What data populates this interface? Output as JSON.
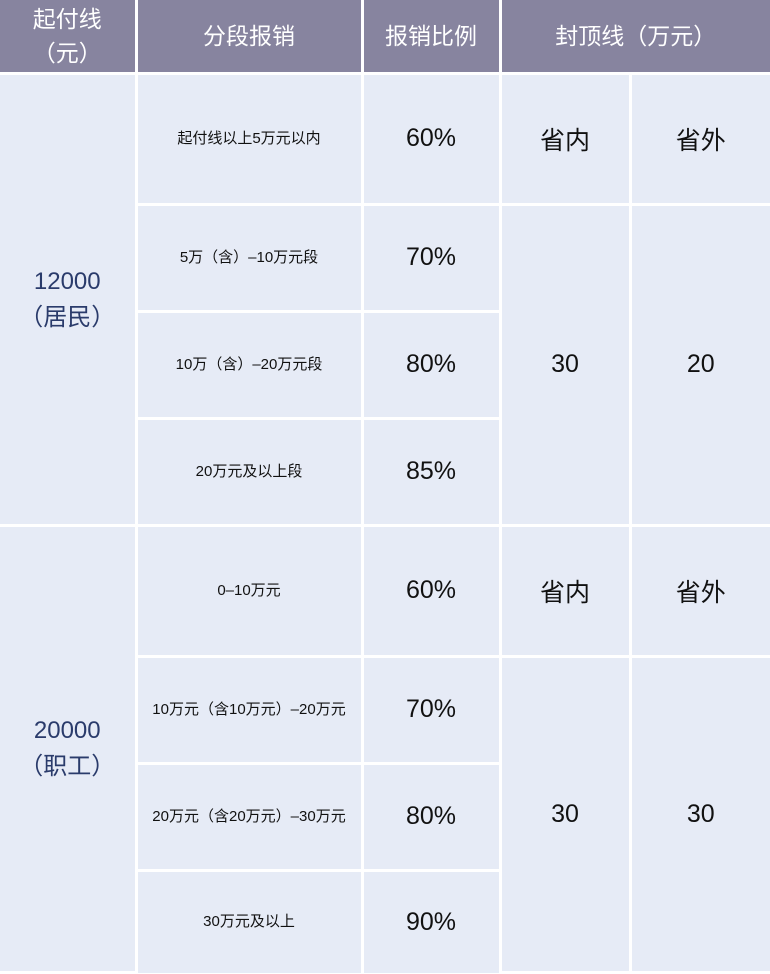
{
  "header": {
    "deductible": "起付线\n（元）",
    "deductible_l1": "起付线",
    "deductible_l2": "（元）",
    "segments": "分段报销",
    "ratio": "报销比例",
    "cap": "封顶线（万元）"
  },
  "groups": [
    {
      "deductible": "12000",
      "type": "（居民）",
      "segments": [
        {
          "label": "起付线以上5万元以内",
          "ratio": "60%"
        },
        {
          "label": "5万（含）–10万元段",
          "ratio": "70%"
        },
        {
          "label": "10万（含）–20万元段",
          "ratio": "80%"
        },
        {
          "label": "20万元及以上段",
          "ratio": "85%"
        }
      ],
      "cap_in_label": "省内",
      "cap_out_label": "省外",
      "cap_in": "30",
      "cap_out": "20"
    },
    {
      "deductible": "20000",
      "type": "（职工）",
      "segments": [
        {
          "label": "0–10万元",
          "ratio": "60%"
        },
        {
          "label": "10万元（含10万元）–20万元",
          "ratio": "70%"
        },
        {
          "label": "20万元（含20万元）–30万元",
          "ratio": "80%"
        },
        {
          "label": "30万元及以上",
          "ratio": "90%"
        }
      ],
      "cap_in_label": "省内",
      "cap_out_label": "省外",
      "cap_in": "30",
      "cap_out": "30"
    }
  ],
  "colors": {
    "header_bg": "#87849f",
    "cell_bg": "#e6ebf6",
    "deductible_text": "#2a3b6b"
  }
}
